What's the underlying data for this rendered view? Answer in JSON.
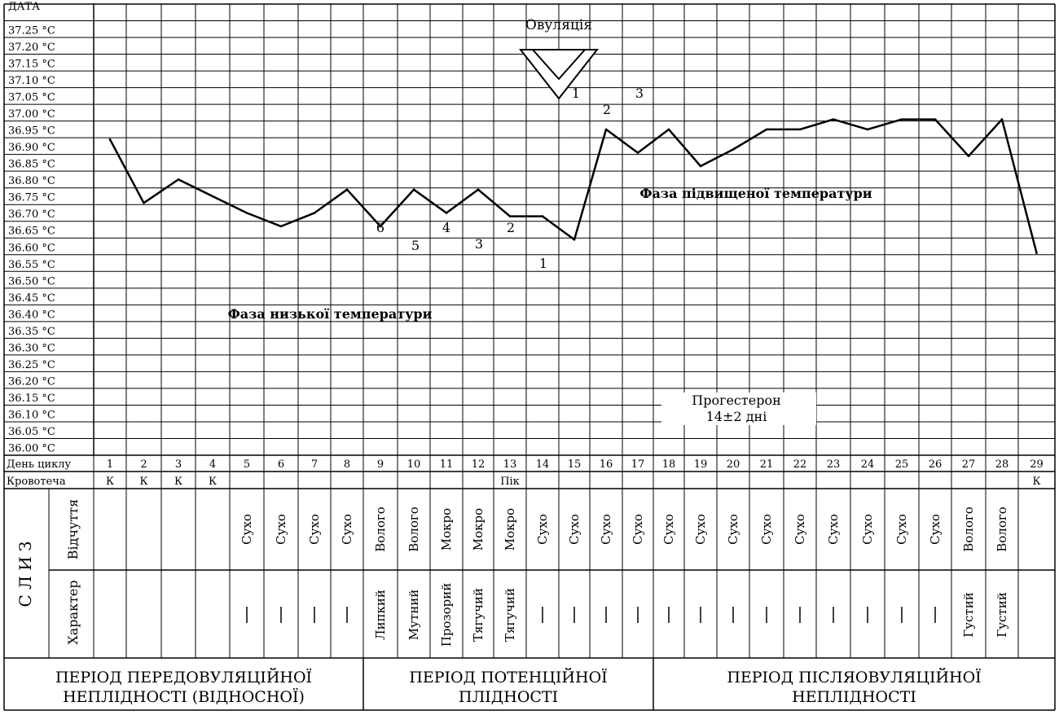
{
  "chart_data": {
    "type": "line",
    "date_label": "ДАТА",
    "y_tick_labels": [
      "37.25 °C",
      "37.20 °C",
      "37.15 °C",
      "37.10 °C",
      "37.05 °C",
      "37.00 °C",
      "36.95 °C",
      "36.90 °C",
      "36.85 °C",
      "36.80 °C",
      "36.75 °C",
      "36.70 °C",
      "36.65 °C",
      "36.60 °C",
      "36.55 °C",
      "36.50 °C",
      "36.45 °C",
      "36.40 °C",
      "36.35 °C",
      "36.30 °C",
      "36.25 °C",
      "36.20 °C",
      "36.15 °C",
      "36.10 °C",
      "36.05 °C",
      "36.00 °C"
    ],
    "ylim": [
      36.0,
      37.25
    ],
    "x": [
      1,
      2,
      3,
      4,
      5,
      6,
      7,
      8,
      9,
      10,
      11,
      12,
      13,
      14,
      15,
      16,
      17,
      18,
      19,
      20,
      21,
      22,
      23,
      24,
      25,
      26,
      27,
      28,
      29
    ],
    "series": [
      {
        "values": [
          36.92,
          36.73,
          36.8,
          36.75,
          36.7,
          36.66,
          36.7,
          36.77,
          36.66,
          36.77,
          36.7,
          36.77,
          36.69,
          36.69,
          36.62,
          36.95,
          36.88,
          36.95,
          36.84,
          36.89,
          36.95,
          36.95,
          36.98,
          36.95,
          36.98,
          36.98,
          36.87,
          36.98,
          36.58
        ]
      }
    ],
    "annotations": {
      "ovulation": "Овуляція",
      "low_phase": "Фаза низької температури",
      "high_phase": "Фаза підвищеної температури",
      "progesterone_line1": "Прогестерон",
      "progesterone_line2": "14±2 дні",
      "low_numbers": [
        "6",
        "5",
        "4",
        "3",
        "2",
        "1"
      ],
      "high_numbers": [
        "1",
        "2",
        "3"
      ]
    },
    "rows": {
      "day_label": "День циклу",
      "bleeding_label": "Кровотеча",
      "days": [
        "1",
        "2",
        "3",
        "4",
        "5",
        "6",
        "7",
        "8",
        "9",
        "10",
        "11",
        "12",
        "13",
        "14",
        "15",
        "16",
        "17",
        "18",
        "19",
        "20",
        "21",
        "22",
        "23",
        "24",
        "25",
        "26",
        "27",
        "28",
        "29"
      ],
      "bleeding": [
        "К",
        "К",
        "К",
        "К",
        "",
        "",
        "",
        "",
        "",
        "",
        "",
        "",
        "Пік",
        "",
        "",
        "",
        "",
        "",
        "",
        "",
        "",
        "",
        "",
        "",
        "",
        "",
        "",
        "",
        "К"
      ],
      "mucus_label": "С Л И З",
      "sensation_label": "Відчуття",
      "character_label": "Характер",
      "sensation": [
        "",
        "",
        "",
        "",
        "Сухо",
        "Сухо",
        "Сухо",
        "Сухо",
        "Волого",
        "Волого",
        "Мокро",
        "Мокро",
        "Мокро",
        "Сухо",
        "Сухо",
        "Сухо",
        "Сухо",
        "Сухо",
        "Сухо",
        "Сухо",
        "Сухо",
        "Сухо",
        "Сухо",
        "Сухо",
        "Сухо",
        "Сухо",
        "Волого",
        "Волого",
        ""
      ],
      "character": [
        "",
        "",
        "",
        "",
        "|",
        "|",
        "|",
        "|",
        "Липкий",
        "Мутний",
        "Прозорий",
        "Тягучий",
        "Тягучий",
        "|",
        "|",
        "|",
        "|",
        "|",
        "|",
        "|",
        "|",
        "|",
        "|",
        "|",
        "|",
        "|",
        "Густий",
        "Густий",
        ""
      ]
    },
    "periods": [
      {
        "line1": "ПЕРІОД ПЕРЕДОВУЛЯЦІЙНОЇ",
        "line2": "НЕПЛІДНОСТІ (ВІДНОСНОЇ)"
      },
      {
        "line1": "ПЕРІОД ПОТЕНЦІЙНОЇ",
        "line2": "ПЛІДНОСТІ"
      },
      {
        "line1": "ПЕРІОД ПІСЛЯОВУЛЯЦІЙНОЇ",
        "line2": "НЕПЛІДНОСТІ"
      }
    ]
  }
}
